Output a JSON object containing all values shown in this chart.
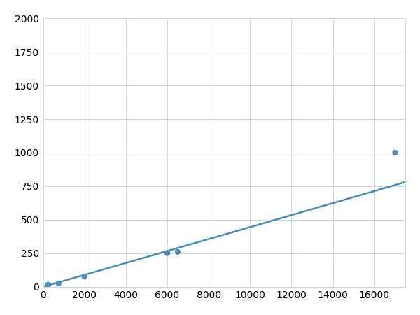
{
  "x": [
    250,
    750,
    2000,
    6000,
    6500,
    17000
  ],
  "y": [
    15,
    25,
    75,
    250,
    260,
    1000
  ],
  "line_color": "#4a8cb8",
  "marker_color": "#4a8cb8",
  "marker_size": 6,
  "line_width": 1.8,
  "xlim": [
    0,
    17500
  ],
  "ylim": [
    0,
    2000
  ],
  "xticks": [
    0,
    2000,
    4000,
    6000,
    8000,
    10000,
    12000,
    14000,
    16000
  ],
  "yticks": [
    0,
    250,
    500,
    750,
    1000,
    1250,
    1500,
    1750,
    2000
  ],
  "grid_color": "#cdd8e8",
  "background_color": "#ffffff",
  "tick_fontsize": 10
}
